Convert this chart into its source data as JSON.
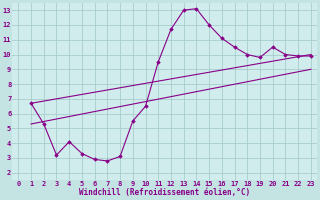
{
  "background_color": "#c4e4e4",
  "plot_bg_color": "#d0ecec",
  "line_color": "#880088",
  "grid_color": "#a8cccc",
  "xlabel": "Windchill (Refroidissement éolien,°C)",
  "xlabel_color": "#880088",
  "xlim": [
    -0.5,
    23.5
  ],
  "ylim": [
    1.5,
    13.5
  ],
  "xticks": [
    0,
    1,
    2,
    3,
    4,
    5,
    6,
    7,
    8,
    9,
    10,
    11,
    12,
    13,
    14,
    15,
    16,
    17,
    18,
    19,
    20,
    21,
    22,
    23
  ],
  "yticks": [
    2,
    3,
    4,
    5,
    6,
    7,
    8,
    9,
    10,
    11,
    12,
    13
  ],
  "series": [
    {
      "x": [
        1,
        2,
        3,
        4,
        5,
        6,
        7,
        8,
        9,
        10,
        11,
        12,
        13,
        14,
        15,
        16,
        17,
        18,
        19,
        20,
        21,
        22,
        23
      ],
      "y": [
        6.7,
        5.3,
        3.2,
        4.1,
        3.3,
        2.9,
        2.8,
        3.1,
        5.5,
        6.5,
        9.5,
        11.7,
        13.0,
        13.1,
        12.0,
        11.1,
        10.5,
        10.0,
        9.8,
        10.5,
        10.0,
        9.9,
        9.9
      ]
    },
    {
      "x": [
        1,
        23
      ],
      "y": [
        6.7,
        10.0
      ]
    },
    {
      "x": [
        1,
        23
      ],
      "y": [
        5.3,
        9.0
      ]
    }
  ]
}
